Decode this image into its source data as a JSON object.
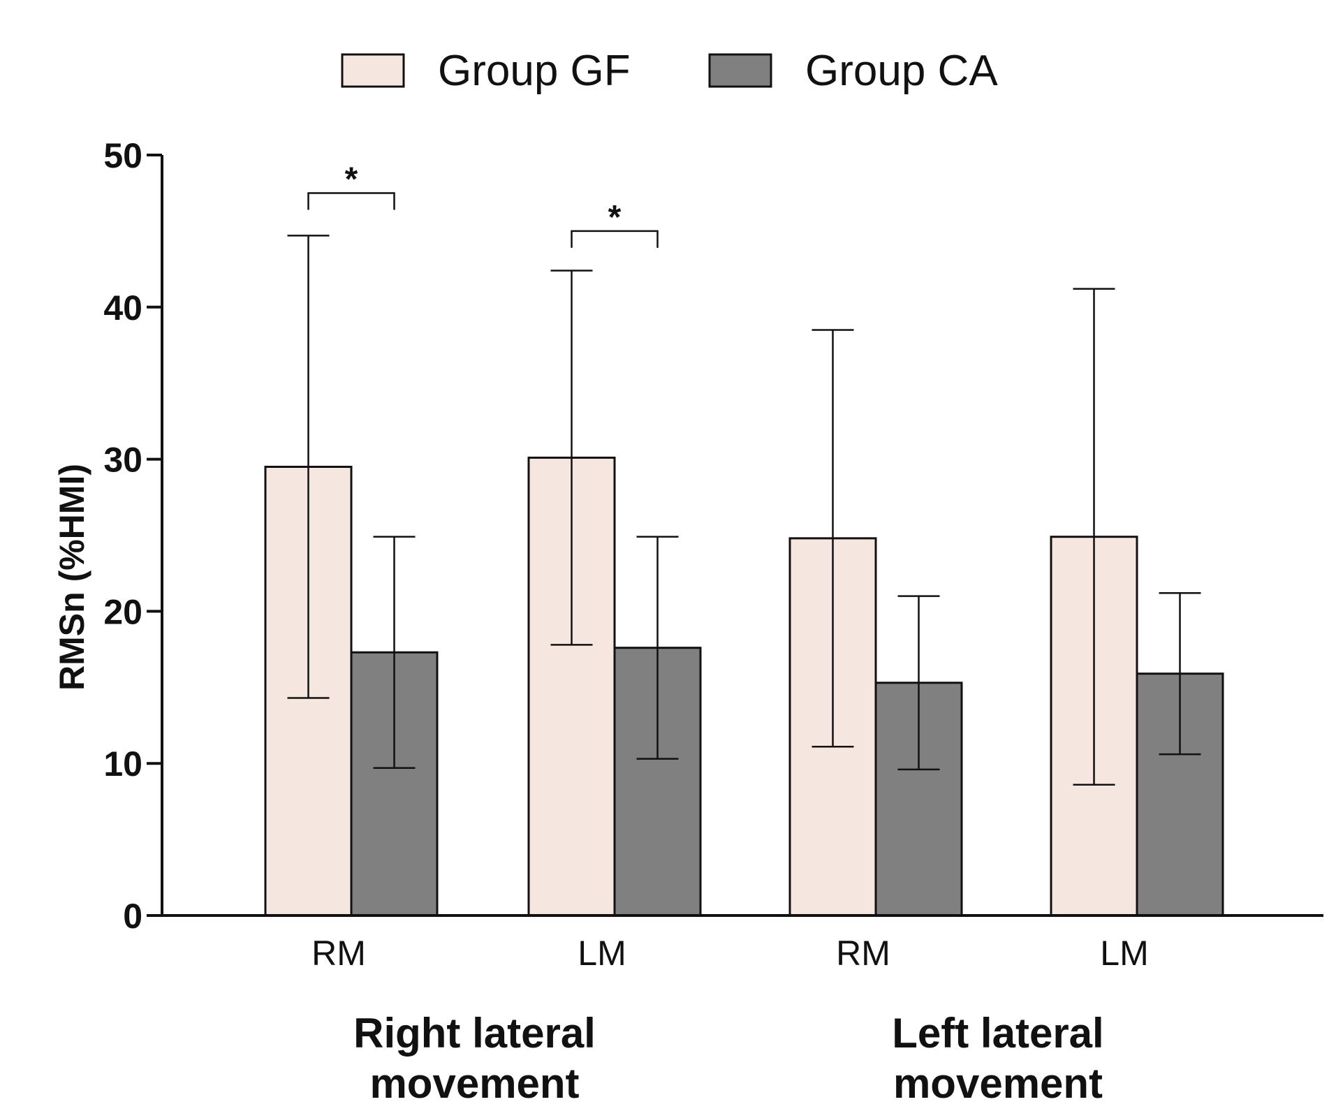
{
  "chart_data": {
    "type": "bar",
    "title": "",
    "xlabel": "",
    "ylabel": "RMSn (%HMI)",
    "ylim": [
      0,
      50
    ],
    "yticks": [
      0,
      10,
      20,
      30,
      40,
      50
    ],
    "categories": [
      "RM",
      "LM",
      "RM",
      "LM"
    ],
    "groups": [
      {
        "label": "Right lateral movement",
        "categories": [
          0,
          1
        ]
      },
      {
        "label": "Left lateral movement",
        "categories": [
          2,
          3
        ]
      }
    ],
    "series": [
      {
        "name": "Group GF",
        "color": "#f5e6e0",
        "values": [
          29.5,
          30.1,
          24.8,
          24.9
        ],
        "error": [
          15.2,
          12.3,
          13.7,
          16.3
        ]
      },
      {
        "name": "Group CA",
        "color": "#808080",
        "values": [
          17.3,
          17.6,
          15.3,
          15.9
        ],
        "error": [
          7.6,
          7.3,
          5.7,
          5.3
        ]
      }
    ],
    "annotations": [
      {
        "text": "*",
        "category": 0,
        "ref_value": 47.5
      },
      {
        "text": "*",
        "category": 1,
        "ref_value": 45.0
      }
    ],
    "legend": "top-center",
    "grid": false
  }
}
